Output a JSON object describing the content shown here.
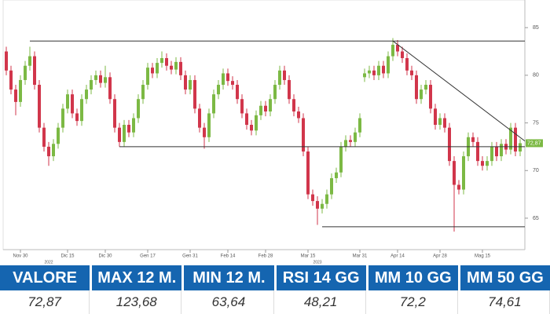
{
  "chart_data": {
    "type": "candlestick",
    "categories": [
      null,
      null,
      null,
      "Nov 30",
      null,
      null,
      null,
      null,
      null,
      null,
      null,
      null,
      null,
      "Dic 15",
      null,
      null,
      null,
      null,
      null,
      null,
      null,
      "Dic 30",
      null,
      null,
      null,
      null,
      null,
      null,
      null,
      null,
      "Gen 17",
      null,
      null,
      null,
      null,
      null,
      null,
      null,
      null,
      "Gen 31",
      null,
      null,
      null,
      null,
      null,
      null,
      null,
      "Feb 14",
      null,
      null,
      null,
      null,
      null,
      null,
      null,
      "Feb 28",
      null,
      null,
      null,
      null,
      null,
      null,
      null,
      null,
      "Mar 15",
      null,
      null,
      null,
      null,
      null,
      null,
      null,
      null,
      null,
      null,
      "Mar 31",
      null,
      null,
      null,
      null,
      null,
      null,
      null,
      "Apr 14",
      null,
      null,
      null,
      null,
      null,
      null,
      null,
      null,
      "Apr 28",
      null,
      null,
      null,
      null,
      null,
      null,
      null,
      null,
      "Mag 15",
      null,
      null,
      null,
      null,
      null,
      null,
      null,
      null
    ],
    "open": [
      82.5,
      80.5,
      78.5,
      77.2,
      79.5,
      81.0,
      82.0,
      79.0,
      74.5,
      72.5,
      71.5,
      72.8,
      74.5,
      76.5,
      78.0,
      76.0,
      75.2,
      77.5,
      78.5,
      79.5,
      80.0,
      79.2,
      79.8,
      77.5,
      74.5,
      73.0,
      74.8,
      74.0,
      75.5,
      77.5,
      79.0,
      80.8,
      80.2,
      81.3,
      81.8,
      81.0,
      80.6,
      81.4,
      80.0,
      78.5,
      79.5,
      76.5,
      74.5,
      73.5,
      76.0,
      78.0,
      79.0,
      80.2,
      79.4,
      79.0,
      77.5,
      76.0,
      74.8,
      74.2,
      75.8,
      76.8,
      76.2,
      77.5,
      79.0,
      80.5,
      79.5,
      77.5,
      76.2,
      75.5,
      72.0,
      67.5,
      66.8,
      66.0,
      66.5,
      67.5,
      69.2,
      69.8,
      72.5,
      73.2,
      73.0,
      74.0,
      79.8,
      80.2,
      80.5,
      80.0,
      81.0,
      80.2,
      82.0,
      83.2,
      82.5,
      81.8,
      80.5,
      80.0,
      77.5,
      78.5,
      79.0,
      76.5,
      74.8,
      75.5,
      74.5,
      71.0,
      68.5,
      68.0,
      71.5,
      73.5,
      73.0,
      71.0,
      70.5,
      71.0,
      72.5,
      71.5,
      72.8,
      72.2,
      74.5,
      72.0
    ],
    "high": [
      83.0,
      81.0,
      79.0,
      80.0,
      81.5,
      83.0,
      82.5,
      79.5,
      75.0,
      73.0,
      73.3,
      75.0,
      77.0,
      78.5,
      78.5,
      76.5,
      78.0,
      79.0,
      80.0,
      80.5,
      80.5,
      81.0,
      80.3,
      78.0,
      75.0,
      75.3,
      75.3,
      76.0,
      78.0,
      79.5,
      81.3,
      81.3,
      81.8,
      82.5,
      82.3,
      81.5,
      81.9,
      81.9,
      80.5,
      80.0,
      80.0,
      77.0,
      75.0,
      76.5,
      78.5,
      79.5,
      80.7,
      80.7,
      79.9,
      79.5,
      78.0,
      76.5,
      75.3,
      76.3,
      77.3,
      77.3,
      78.0,
      79.5,
      81.0,
      81.0,
      80.0,
      78.0,
      76.7,
      76.0,
      72.5,
      68.0,
      67.3,
      67.0,
      68.0,
      69.7,
      70.3,
      73.0,
      73.7,
      73.7,
      74.5,
      76.0,
      80.7,
      81.0,
      81.0,
      81.5,
      81.5,
      82.5,
      83.9,
      83.7,
      83.0,
      82.3,
      81.0,
      80.5,
      79.0,
      79.5,
      79.5,
      77.0,
      76.0,
      76.0,
      75.0,
      71.5,
      69.0,
      72.0,
      74.0,
      74.0,
      73.5,
      71.5,
      71.5,
      73.0,
      73.0,
      73.3,
      73.3,
      75.0,
      75.0,
      73.3
    ],
    "low": [
      80.0,
      78.0,
      75.8,
      76.7,
      79.0,
      80.5,
      78.5,
      74.0,
      72.0,
      70.5,
      71.0,
      72.3,
      74.0,
      76.0,
      75.5,
      74.7,
      74.7,
      77.0,
      78.0,
      79.0,
      78.7,
      78.7,
      77.0,
      74.0,
      72.5,
      72.5,
      73.5,
      73.5,
      75.0,
      77.0,
      78.5,
      79.7,
      79.7,
      80.8,
      80.5,
      80.1,
      80.1,
      79.5,
      78.0,
      78.0,
      76.0,
      74.0,
      72.3,
      73.0,
      75.5,
      77.5,
      78.5,
      78.9,
      78.5,
      77.0,
      75.5,
      74.3,
      73.7,
      73.7,
      75.3,
      75.7,
      75.7,
      77.0,
      78.5,
      79.0,
      77.0,
      75.7,
      75.0,
      71.5,
      67.0,
      66.3,
      64.3,
      65.5,
      66.0,
      67.0,
      68.7,
      69.3,
      72.0,
      72.5,
      72.5,
      73.5,
      79.3,
      79.7,
      79.5,
      79.5,
      79.7,
      79.7,
      81.5,
      82.0,
      81.3,
      80.0,
      79.5,
      77.0,
      77.0,
      78.0,
      76.0,
      74.3,
      74.3,
      74.0,
      70.5,
      63.6,
      67.5,
      67.5,
      71.0,
      72.5,
      70.5,
      70.0,
      70.0,
      70.5,
      71.0,
      71.0,
      71.7,
      71.7,
      71.5,
      71.5
    ],
    "close": [
      80.5,
      78.5,
      77.2,
      79.5,
      81.0,
      82.0,
      79.0,
      74.5,
      72.5,
      71.5,
      72.8,
      74.5,
      76.5,
      78.0,
      76.0,
      75.2,
      77.5,
      78.5,
      79.5,
      80.0,
      79.2,
      79.8,
      77.5,
      74.5,
      73.0,
      74.8,
      74.0,
      75.5,
      77.5,
      79.0,
      80.8,
      80.2,
      81.3,
      81.8,
      81.0,
      80.6,
      81.4,
      80.0,
      78.5,
      79.5,
      76.5,
      74.5,
      73.5,
      76.0,
      78.0,
      79.0,
      80.2,
      79.4,
      79.0,
      77.5,
      76.0,
      74.8,
      74.2,
      75.8,
      76.8,
      76.2,
      77.5,
      79.0,
      80.5,
      79.5,
      77.5,
      76.2,
      75.5,
      72.0,
      67.5,
      66.8,
      66.0,
      66.5,
      67.5,
      69.2,
      69.8,
      72.5,
      73.2,
      73.0,
      74.0,
      75.5,
      80.2,
      80.5,
      80.0,
      81.0,
      80.2,
      82.0,
      83.2,
      82.5,
      81.8,
      80.5,
      80.0,
      77.5,
      78.5,
      79.0,
      76.5,
      74.8,
      75.5,
      74.5,
      71.0,
      68.5,
      68.0,
      71.5,
      73.5,
      73.0,
      71.0,
      70.5,
      71.0,
      72.5,
      71.5,
      72.8,
      72.2,
      74.5,
      72.0,
      72.87
    ],
    "up_color": "#7cb944",
    "down_color": "#d1364b",
    "ylim": [
      61.7,
      87.9
    ],
    "yticks": [
      65,
      70,
      75,
      80,
      85
    ],
    "year_labels": [
      {
        "label": "2022",
        "index": 9
      },
      {
        "label": "2023",
        "index": 66
      }
    ],
    "trendlines": [
      {
        "from_index": 5,
        "from_value": 83.6,
        "to_index": 111,
        "to_value": 83.6
      },
      {
        "from_index": 24,
        "from_value": 72.5,
        "to_index": 111,
        "to_value": 72.5
      },
      {
        "from_index": 67,
        "from_value": 64.1,
        "to_index": 111,
        "to_value": 64.1
      },
      {
        "from_index": 82,
        "from_value": 83.6,
        "to_index": 111,
        "to_value": 73.1
      }
    ],
    "last_price": {
      "value": 72.87,
      "label": "72,87"
    }
  },
  "table": {
    "headers": [
      "VALORE",
      "MAX 12 M.",
      "MIN 12 M.",
      "RSI 14 GG",
      "MM 10 GG",
      "MM 50 GG"
    ],
    "rows": [
      [
        "72,87",
        "123,68",
        "63,64",
        "48,21",
        "72,2",
        "74,61"
      ]
    ]
  }
}
